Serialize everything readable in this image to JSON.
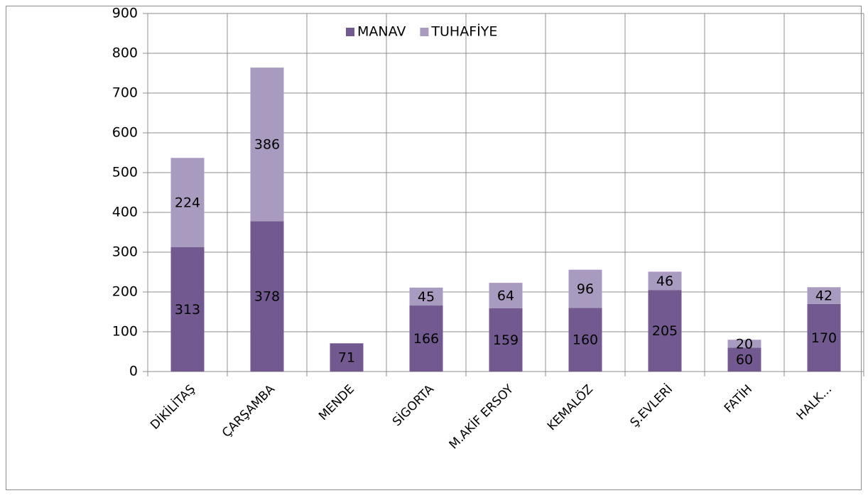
{
  "chart_data": {
    "type": "stacked_bar",
    "categories": [
      "DİKİLİTAŞ",
      "ÇARŞAMBA",
      "MENDE",
      "SİGORTA",
      "M.AKİF ERSOY",
      "KEMALÖZ",
      "Ş.EVLERİ",
      "FATİH",
      "HALK..."
    ],
    "series": [
      {
        "name": "MANAV",
        "color": "#725a91",
        "values": [
          313,
          378,
          71,
          166,
          159,
          160,
          205,
          60,
          170
        ]
      },
      {
        "name": "TUHAFİYE",
        "color": "#a89bbf",
        "values": [
          224,
          386,
          null,
          45,
          64,
          96,
          46,
          20,
          42
        ]
      }
    ],
    "ylim": [
      0,
      900
    ],
    "yticks": [
      0,
      100,
      200,
      300,
      400,
      500,
      600,
      700,
      800,
      900
    ],
    "grid": true,
    "legend": "top"
  }
}
